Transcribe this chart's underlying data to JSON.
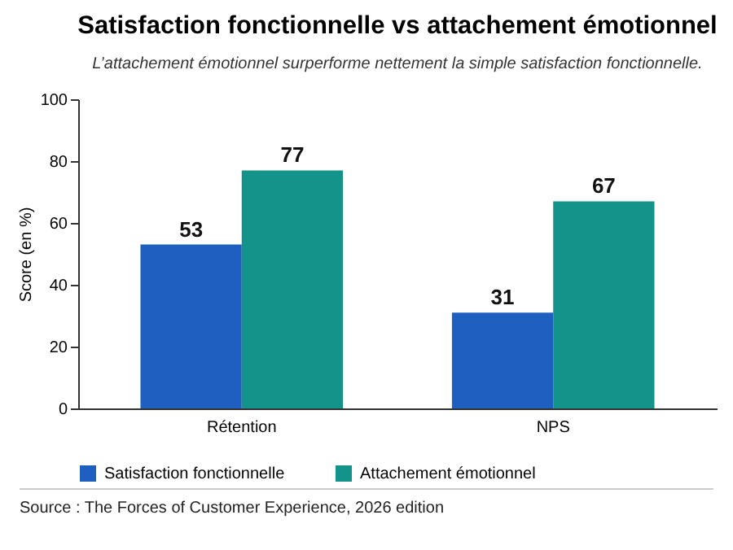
{
  "chart_data": {
    "type": "bar",
    "title": "Satisfaction fonctionnelle vs attachement émotionnel",
    "subtitle": "L’attachement émotionnel surperforme nettement la simple satisfaction fonctionnelle.",
    "ylabel": "Score (en %)",
    "categories": [
      "Rétention",
      "NPS"
    ],
    "series": [
      {
        "name": "Satisfaction fonctionnelle",
        "color": "#1f5fbf",
        "values": [
          53,
          31
        ]
      },
      {
        "name": "Attachement émotionnel",
        "color": "#14938a",
        "values": [
          77,
          67
        ]
      }
    ],
    "ylim": [
      0,
      100
    ],
    "yticks": [
      0,
      20,
      40,
      60,
      80,
      100
    ],
    "grid": false,
    "legend": "bottom",
    "data_labels": true,
    "annotations": [
      "Source : The Forces of Customer Experience, 2026 edition"
    ]
  }
}
